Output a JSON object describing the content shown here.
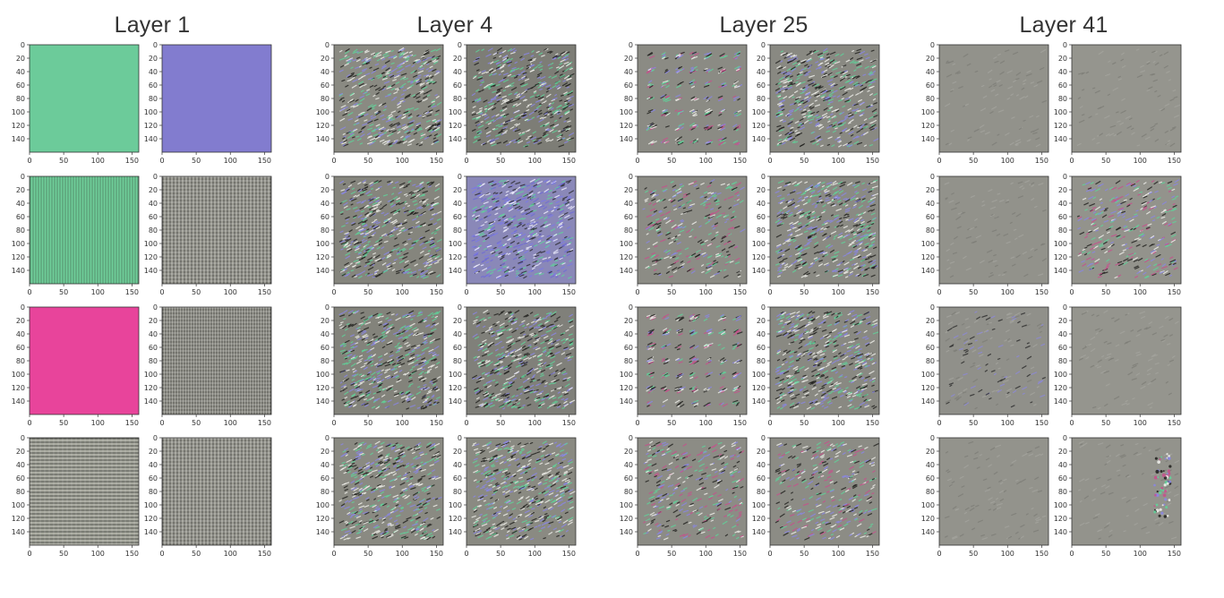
{
  "figure": {
    "layers": [
      {
        "title": "Layer 1"
      },
      {
        "title": "Layer 4"
      },
      {
        "title": "Layer 25"
      },
      {
        "title": "Layer 41"
      }
    ],
    "axis": {
      "yticks": [
        "0",
        "20",
        "40",
        "60",
        "80",
        "100",
        "120",
        "140"
      ],
      "xticks": [
        "0",
        "50",
        "100",
        "150"
      ],
      "range": [
        0,
        160
      ]
    },
    "panels": [
      [
        [
          {
            "style": "solid",
            "color": "#6ccb9a"
          },
          {
            "style": "solid",
            "color": "#827ccf"
          }
        ],
        [
          {
            "style": "stripes-v",
            "color": "#6fcf9a"
          },
          {
            "style": "grid",
            "color": "#9a9a92"
          }
        ],
        [
          {
            "style": "solid",
            "color": "#e8449b"
          },
          {
            "style": "grid-v",
            "color": "#9a9a92"
          }
        ],
        [
          {
            "style": "stripes-h",
            "color": "#a9aaa0"
          },
          {
            "style": "grid",
            "color": "#9a9a92"
          }
        ]
      ],
      [
        [
          {
            "style": "texture",
            "color": "#8a8a82"
          },
          {
            "style": "texture",
            "color": "#7d7d76"
          }
        ],
        [
          {
            "style": "texture",
            "color": "#85857d"
          },
          {
            "style": "texture-blue",
            "color": "#8a88b8"
          }
        ],
        [
          {
            "style": "texture",
            "color": "#83837b"
          },
          {
            "style": "texture",
            "color": "#80807a"
          }
        ],
        [
          {
            "style": "texture",
            "color": "#8a8a82"
          },
          {
            "style": "texture",
            "color": "#8a8a82"
          }
        ]
      ],
      [
        [
          {
            "style": "blobs-grid",
            "color": "#8b8b84"
          },
          {
            "style": "texture",
            "color": "#898982"
          }
        ],
        [
          {
            "style": "blobs",
            "color": "#8c8c85"
          },
          {
            "style": "texture",
            "color": "#8a8a83"
          }
        ],
        [
          {
            "style": "blobs-grid",
            "color": "#8d8d86"
          },
          {
            "style": "texture",
            "color": "#898982"
          }
        ],
        [
          {
            "style": "blobs",
            "color": "#8c8c85"
          },
          {
            "style": "blobs",
            "color": "#8c8c85"
          }
        ]
      ],
      [
        [
          {
            "style": "faint",
            "color": "#92928b"
          },
          {
            "style": "faint",
            "color": "#95958e"
          }
        ],
        [
          {
            "style": "faint",
            "color": "#92928b"
          },
          {
            "style": "blobs",
            "color": "#93938c"
          }
        ],
        [
          {
            "style": "faint-blue",
            "color": "#90908a"
          },
          {
            "style": "faint",
            "color": "#95958e"
          }
        ],
        [
          {
            "style": "faint",
            "color": "#93938c"
          },
          {
            "style": "faint-spot",
            "color": "#93938c"
          }
        ]
      ]
    ]
  }
}
